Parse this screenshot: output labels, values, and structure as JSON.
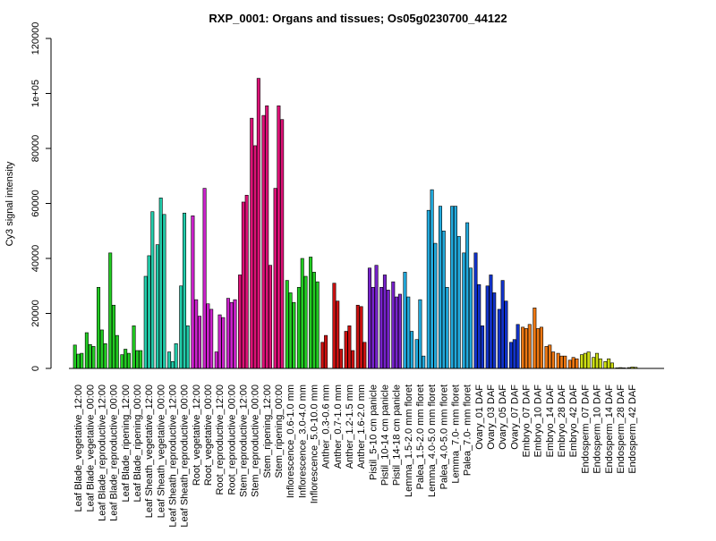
{
  "chart_data": {
    "type": "bar",
    "title": "RXP_0001: Organs and tissues; Os05g0230700_44122",
    "ylabel": "Cy3 signal intensity",
    "xlabel": "",
    "ylim": [
      0,
      120000
    ],
    "yticks": [
      {
        "value": 0,
        "label": "0"
      },
      {
        "value": 20000,
        "label": "20000"
      },
      {
        "value": 40000,
        "label": "40000"
      },
      {
        "value": 60000,
        "label": "60000"
      },
      {
        "value": 80000,
        "label": "80000"
      },
      {
        "value": 100000,
        "label": "1e+05"
      },
      {
        "value": 120000,
        "label": "120000"
      }
    ],
    "grid": false,
    "legend": "none",
    "labeled_categories": [
      "Leaf Blade_vegetative_12:00",
      "Leaf Blade_vegetative_00:00",
      "Leaf Blade_reproductive_12:00",
      "Leaf Blade_reproductive_00:00",
      "Leaf Blade_ripening_12:00",
      "Leaf Blade_ripening_00:00",
      "Leaf Sheath_vegetative_12:00",
      "Leaf Sheath_vegetative_00:00",
      "Leaf Sheath_reproductive_12:00",
      "Leaf Sheath_reproductive_00:00",
      "Root_vegetative_12:00",
      "Root_vegetative_00:00",
      "Root_reproductive_12:00",
      "Root_reproductive_00:00",
      "Stem_reproductive_12:00",
      "Stem_reproductive_00:00",
      "Stem_ripening_12:00",
      "Stem_ripening_00:00",
      "Inflorescence_0.6-1.0 mm",
      "Inflorescence_3.0-4.0 mm",
      "Inflorescence_5.0-10.0 mm",
      "Anther_0.3-0.6 mm",
      "Anther_0.7-1.0 mm",
      "Anther_1.2-1.5 mm",
      "Anther_1.6-2.0 mm",
      "Pistil_5-10 cm panicle",
      "Pistil_10-14 cm panicle",
      "Pistil_14-18 cm panicle",
      "Lemma_1.5-2.0 mm floret",
      "Palea_1.5-2.0 mm floret",
      "Lemma_4.0-5.0 mm floret",
      "Palea_4.0-5.0 mm floret",
      "Lemma_7.0- mm floret",
      "Palea_7.0- mm floret",
      "Ovary_01 DAF",
      "Ovary_03 DAF",
      "Ovary_05 DAF",
      "Ovary_07 DAF",
      "Embryo_07 DAF",
      "Embryo_10 DAF",
      "Embryo_14 DAF",
      "Embryo_28 DAF",
      "Embryo_42 DAF",
      "Endosperm_07 DAF",
      "Endosperm_10 DAF",
      "Endosperm_14 DAF",
      "Endosperm_28 DAF",
      "Endosperm_42 DAF"
    ],
    "values": [
      8500,
      5200,
      5500,
      13000,
      8700,
      8000,
      29500,
      14000,
      9000,
      42000,
      23000,
      12000,
      5000,
      7000,
      5500,
      15500,
      6500,
      6500,
      33500,
      41000,
      57000,
      45000,
      62000,
      56000,
      6000,
      2500,
      9000,
      30000,
      56500,
      15500,
      55500,
      25000,
      19000,
      65500,
      23500,
      21500,
      6000,
      19500,
      18500,
      25500,
      24000,
      25000,
      34000,
      60500,
      63000,
      91000,
      81000,
      105500,
      92000,
      95500,
      37500,
      65500,
      95500,
      90500,
      32000,
      27500,
      24000,
      29500,
      40000,
      33500,
      40500,
      35000,
      31500,
      9500,
      12000,
      0,
      31000,
      24500,
      7000,
      13500,
      15500,
      6500,
      23000,
      22500,
      9500,
      36500,
      29500,
      37500,
      29500,
      34000,
      28500,
      31500,
      26000,
      27000,
      35000,
      26000,
      13500,
      10500,
      25000,
      4500,
      57500,
      65000,
      45500,
      59000,
      50000,
      29500,
      59000,
      59000,
      48000,
      42000,
      53000,
      36500,
      42000,
      30500,
      15500,
      30000,
      34000,
      27500,
      21500,
      32000,
      24500,
      9500,
      10500,
      16000,
      15000,
      14500,
      16000,
      22000,
      14500,
      15000,
      8000,
      8500,
      6000,
      5500,
      4500,
      4500,
      3000,
      4000,
      3500,
      5000,
      5500,
      6000,
      4000,
      5500,
      3500,
      2500,
      3500,
      2000,
      200,
      300,
      200,
      300,
      500,
      400
    ],
    "group_colors": [
      "#22cc22",
      "#22cc22",
      "#22cc22",
      "#22cc22",
      "#22cc22",
      "#22cc22",
      "#22ccaa",
      "#22ccaa",
      "#22ccaa",
      "#22ccaa",
      "#cc22cc",
      "#cc22cc",
      "#cc22cc",
      "#cc22cc",
      "#dd1177",
      "#dd1177",
      "#dd1177",
      "#dd1177",
      "#22cc22",
      "#22cc22",
      "#22cc22",
      "#cc1111",
      "#cc1111",
      "#cc1111",
      "#cc1111",
      "#7722cc",
      "#7722cc",
      "#7722cc",
      "#22aadd",
      "#22aadd",
      "#22aadd",
      "#22aadd",
      "#22aadd",
      "#22aadd",
      "#1133cc",
      "#1133cc",
      "#1133cc",
      "#1133cc",
      "#ee7711",
      "#ee7711",
      "#ee7711",
      "#ee7711",
      "#ee7711",
      "#ccdd11",
      "#ccdd11",
      "#ccdd11",
      "#ccdd11",
      "#ccdd11"
    ],
    "bar_outline_color": "#000000",
    "axis_color": "#000000"
  }
}
